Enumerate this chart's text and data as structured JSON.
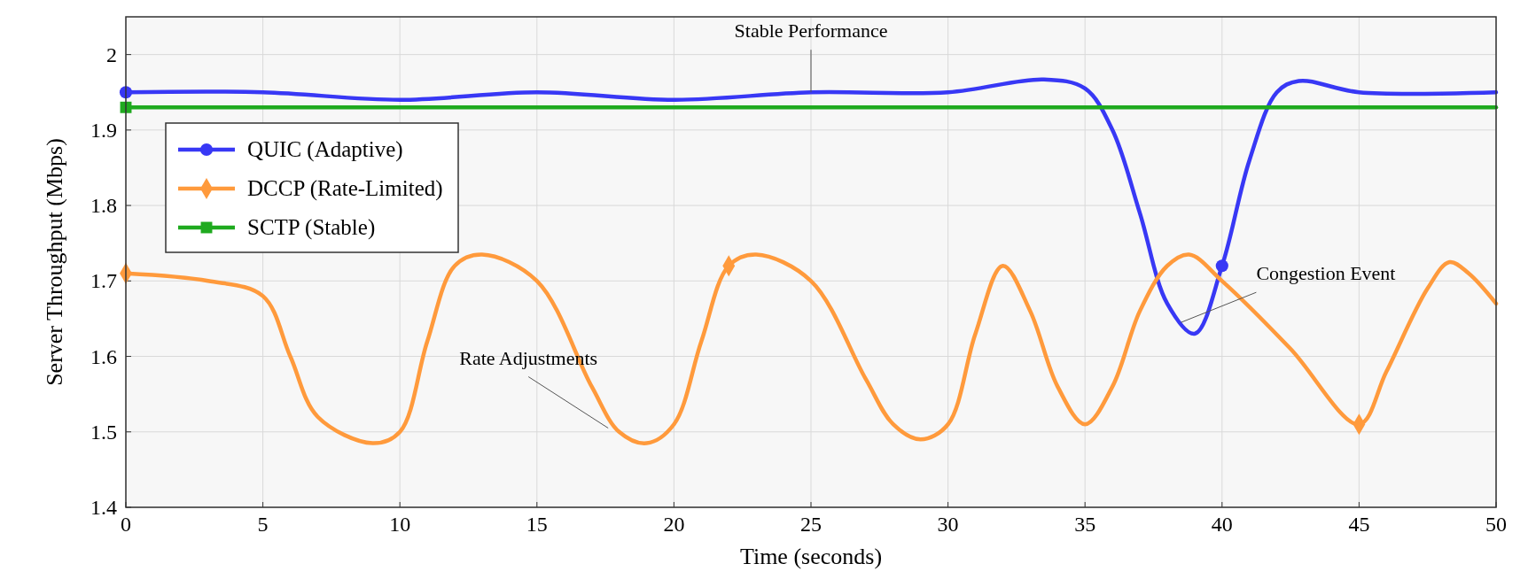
{
  "chart_data": {
    "type": "line",
    "xlabel": "Time (seconds)",
    "ylabel": "Server Throughput (Mbps)",
    "xlim": [
      0,
      50
    ],
    "xticks": [
      0,
      5,
      10,
      15,
      20,
      25,
      30,
      35,
      40,
      45,
      50
    ],
    "ylim": [
      1.4,
      2.05
    ],
    "yticks": [
      1.4,
      1.5,
      1.6,
      1.7,
      1.8,
      1.9,
      2
    ],
    "grid": true,
    "legend": "top left",
    "series": [
      {
        "name": "QUIC (Adaptive)",
        "color": "#3838f5",
        "x": [
          0,
          5,
          10,
          15,
          20,
          25,
          30,
          33.5,
          35,
          36,
          37,
          38,
          39,
          40,
          41,
          42,
          42.8,
          45,
          50
        ],
        "values": [
          1.95,
          1.95,
          1.94,
          1.95,
          1.94,
          1.95,
          1.95,
          1.967,
          1.955,
          1.9,
          1.79,
          1.67,
          1.63,
          1.72,
          1.86,
          1.95,
          1.965,
          1.95,
          1.95
        ]
      },
      {
        "name": "DCCP (Rate-Limited)",
        "color": "#ff9a3c",
        "x": [
          0,
          3,
          5,
          6,
          7,
          9,
          10,
          11,
          12,
          13,
          15,
          17,
          18,
          19,
          20,
          21,
          22,
          23,
          25,
          27,
          28,
          29,
          30,
          31,
          32,
          33,
          34,
          35,
          36,
          37,
          38,
          38.8,
          40,
          42.5,
          45,
          46,
          47.5,
          48.3,
          49,
          50
        ],
        "values": [
          1.71,
          1.7,
          1.68,
          1.6,
          1.52,
          1.485,
          1.5,
          1.62,
          1.72,
          1.735,
          1.7,
          1.56,
          1.5,
          1.485,
          1.51,
          1.62,
          1.72,
          1.735,
          1.7,
          1.57,
          1.51,
          1.49,
          1.51,
          1.63,
          1.72,
          1.66,
          1.56,
          1.51,
          1.56,
          1.66,
          1.72,
          1.735,
          1.7,
          1.61,
          1.51,
          1.58,
          1.69,
          1.725,
          1.71,
          1.67
        ]
      },
      {
        "name": "SCTP (Stable)",
        "color": "#1faa1f",
        "x": [
          0,
          50
        ],
        "values": [
          1.93,
          1.93
        ]
      },
      {
        "type": "scatter",
        "color": "#3838f5",
        "marker": "circle",
        "x": [
          0,
          40
        ],
        "values": [
          1.95,
          1.72
        ]
      },
      {
        "type": "scatter",
        "color": "#ff9a3c",
        "marker": "diamond",
        "x": [
          0,
          22,
          45
        ],
        "values": [
          1.71,
          1.72,
          1.51
        ]
      },
      {
        "type": "scatter",
        "color": "#1faa1f",
        "marker": "square",
        "x": [
          0
        ],
        "values": [
          1.93
        ]
      }
    ],
    "annotations": [
      {
        "text": "Stable Performance",
        "x": 25,
        "y": 1.95
      },
      {
        "text": "Congestion Event",
        "x": 38.5,
        "y": 1.645
      },
      {
        "text": "Rate Adjustments",
        "x": 17.6,
        "y": 1.505
      }
    ]
  }
}
